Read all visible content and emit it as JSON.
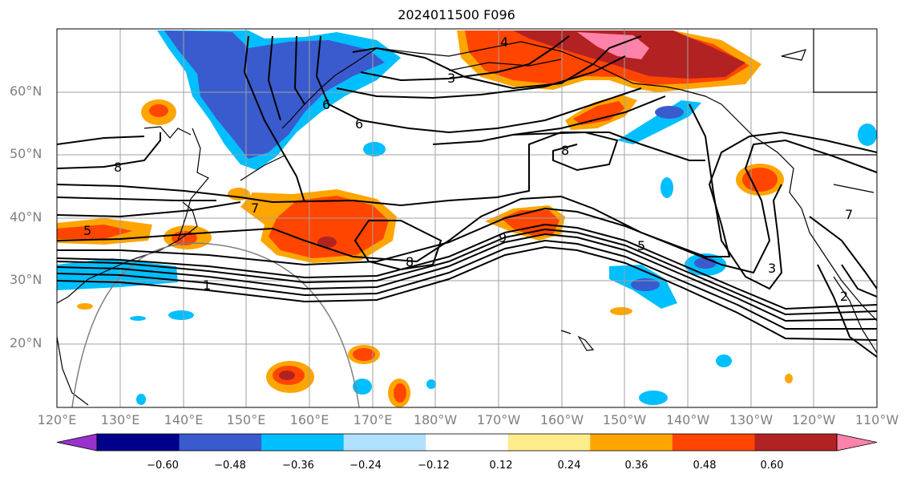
{
  "title": "2024011500 F096",
  "map": {
    "lat_labels": [
      "60°N",
      "50°N",
      "40°N",
      "30°N",
      "20°N"
    ],
    "lon_labels": [
      "120°E",
      "130°E",
      "140°E",
      "150°E",
      "160°E",
      "170°E",
      "180°W",
      "170°W",
      "160°W",
      "150°W",
      "140°W",
      "130°W",
      "120°W",
      "110°W"
    ],
    "contour_labels": [
      "3",
      "4",
      "6",
      "6",
      "8",
      "8",
      "8",
      "7",
      "5",
      "1",
      "9",
      "5",
      "3",
      "7",
      "2"
    ]
  },
  "colorbar": {
    "ticks": [
      "−0.60",
      "−0.48",
      "−0.36",
      "−0.24",
      "−0.12",
      "0.12",
      "0.24",
      "0.36",
      "0.48",
      "0.60"
    ],
    "colors": [
      "#9932cc",
      "#00008b",
      "#3a5bcd",
      "#00bfff",
      "#b0e2ff",
      "#ffffff",
      "#ffec8b",
      "#ffa500",
      "#ff4500",
      "#b22222",
      "#ff82ab"
    ]
  }
}
